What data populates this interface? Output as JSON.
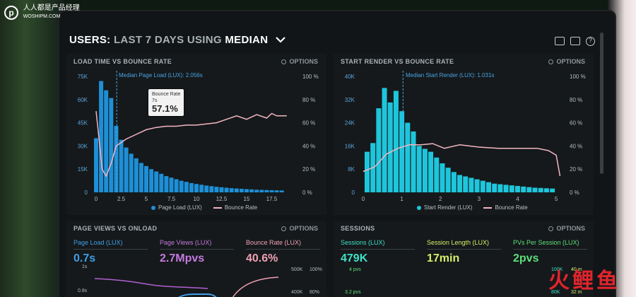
{
  "watermark": {
    "logo": "p",
    "text": "人人都是产品经理",
    "sub": "WOSHIPM.COM"
  },
  "header": {
    "title_parts": [
      "USERS:",
      "LAST 7 DAYS",
      "USING",
      "MEDIAN"
    ],
    "chevron": "chevron-down-icon"
  },
  "toolbar": {
    "icons": [
      "monitor-icon",
      "expand-icon",
      "help-icon"
    ],
    "help_glyph": "?"
  },
  "panels": {
    "load_time": {
      "title": "LOAD TIME VS BOUNCE RATE",
      "options": "OPTIONS",
      "median_label": "Median Page Load (LUX): 2.056s",
      "y_left": [
        "75K",
        "60K",
        "45K",
        "30K",
        "15K",
        "0"
      ],
      "y_right": [
        "100 %",
        "80 %",
        "60 %",
        "40 %",
        "20 %",
        "0 %"
      ],
      "x_ticks": [
        "0",
        "2.5",
        "5",
        "7.5",
        "10",
        "12.5",
        "15",
        "17.5"
      ],
      "legend": [
        "Page Load (LUX)",
        "Bounce Rate"
      ],
      "tooltip": {
        "label": "Bounce Rate",
        "sub": "7s",
        "value": "57.1%"
      }
    },
    "start_render": {
      "title": "START RENDER VS BOUNCE RATE",
      "options": "OPTIONS",
      "median_label": "Median Start Render (LUX): 1.031s",
      "y_left": [
        "40K",
        "32K",
        "24K",
        "16K",
        "8K",
        "0"
      ],
      "y_right": [
        "100 %",
        "80 %",
        "60 %",
        "40 %",
        "20 %",
        "0 %"
      ],
      "x_ticks": [
        "0",
        "1",
        "2",
        "3",
        "4",
        "5"
      ],
      "legend": [
        "Start Render (LUX)",
        "Bounce Rate"
      ]
    },
    "page_views": {
      "title": "PAGE VIEWS VS ONLOAD",
      "options": "OPTIONS",
      "metrics": [
        {
          "label": "Page Load (LUX)",
          "value": "0.7s",
          "color": "#3f9ee8"
        },
        {
          "label": "Page Views (LUX)",
          "value": "2.7Mpvs",
          "color": "#c57be0"
        },
        {
          "label": "Bounce Rate (LUX)",
          "value": "40.6%",
          "color": "#f0a0b4"
        }
      ],
      "ticks_left": [
        "1s",
        "0.8s"
      ],
      "ticks_right_a": [
        "500K",
        "400K"
      ],
      "ticks_right_b": [
        "100%",
        "80%"
      ]
    },
    "sessions": {
      "title": "SESSIONS",
      "options": "OPTIONS",
      "metrics": [
        {
          "label": "Sessions (LUX)",
          "value": "479K",
          "color": "#3fe0c8"
        },
        {
          "label": "Session Length (LUX)",
          "value": "17min",
          "color": "#d6f06a"
        },
        {
          "label": "PVs Per Session (LUX)",
          "value": "2pvs",
          "color": "#5ee07a"
        }
      ],
      "ticks_left": [
        "4 pvs",
        "3.2 pvs"
      ],
      "ticks_right_a": [
        "100K",
        "80K"
      ],
      "ticks_right_b": [
        "40 m",
        "32 m"
      ]
    }
  },
  "brand_logo": "火鲤鱼",
  "colors": {
    "bar_blue": "#1e8fd6",
    "bar_cyan": "#1ec6dc",
    "bounce_pink": "#f4b6c2",
    "median_blue": "#4aa4e6"
  },
  "chart_data": [
    {
      "type": "bar",
      "title": "LOAD TIME VS BOUNCE RATE",
      "x_range": [
        0,
        20
      ],
      "ylim": [
        0,
        75000
      ],
      "y2lim": [
        0,
        100
      ],
      "bars_x": [
        0,
        0.5,
        1,
        1.5,
        2,
        2.5,
        3,
        3.5,
        4,
        4.5,
        5,
        5.5,
        6,
        6.5,
        7,
        7.5,
        8,
        8.5,
        9,
        9.5,
        10,
        10.5,
        11,
        11.5,
        12,
        12.5,
        13,
        13.5,
        14,
        14.5,
        15,
        15.5,
        16,
        16.5,
        17,
        17.5,
        18,
        18.5
      ],
      "series": [
        {
          "name": "Page Load (LUX)",
          "values": [
            35000,
            72000,
            66000,
            61000,
            43000,
            34000,
            29000,
            25000,
            22000,
            19000,
            17000,
            15000,
            13500,
            12000,
            10500,
            9500,
            8500,
            7500,
            6800,
            6000,
            5400,
            4900,
            4400,
            4000,
            3600,
            3300,
            3000,
            2700,
            2500,
            2300,
            2100,
            1900,
            1700,
            1600,
            1500,
            1400,
            1300,
            1200
          ]
        },
        {
          "name": "Bounce Rate",
          "x": [
            0,
            0.3,
            0.6,
            1,
            1.5,
            2,
            3,
            4,
            5,
            6,
            7,
            8,
            9,
            10,
            11,
            12,
            13,
            14,
            15,
            16,
            17,
            17.5,
            18,
            18.5,
            19
          ],
          "values": [
            70,
            45,
            20,
            14,
            25,
            40,
            46,
            50,
            54,
            56,
            57,
            57,
            58,
            58,
            59,
            60,
            63,
            66,
            63,
            67,
            64,
            68,
            66,
            66,
            66
          ]
        }
      ],
      "median": 2.056
    },
    {
      "type": "bar",
      "title": "START RENDER VS BOUNCE RATE",
      "x_range": [
        0,
        5.2
      ],
      "ylim": [
        0,
        40000
      ],
      "y2lim": [
        0,
        100
      ],
      "bars_x": [
        0.1,
        0.25,
        0.4,
        0.55,
        0.7,
        0.85,
        1.0,
        1.15,
        1.3,
        1.45,
        1.6,
        1.75,
        1.9,
        2.05,
        2.2,
        2.35,
        2.5,
        2.65,
        2.8,
        2.95,
        3.1,
        3.25,
        3.4,
        3.55,
        3.7,
        3.85,
        4.0,
        4.15,
        4.3,
        4.45,
        4.6,
        4.75,
        4.9
      ],
      "series": [
        {
          "name": "Start Render (LUX)",
          "values": [
            14000,
            17000,
            29000,
            36000,
            31000,
            35000,
            28000,
            24000,
            21000,
            16000,
            15000,
            14000,
            12000,
            10000,
            8500,
            7000,
            6000,
            5500,
            5000,
            4500,
            4000,
            3500,
            3000,
            2800,
            2600,
            2400,
            2200,
            2000,
            1800,
            1600,
            1500,
            1400,
            1300
          ]
        },
        {
          "name": "Bounce Rate",
          "x": [
            0,
            0.3,
            0.6,
            0.9,
            1.2,
            1.5,
            1.8,
            2.1,
            2.5,
            3,
            3.5,
            4,
            4.5,
            4.8,
            5,
            5.1
          ],
          "values": [
            18,
            22,
            33,
            38,
            41,
            41,
            42,
            38,
            41,
            39,
            38,
            38,
            38,
            36,
            32,
            14
          ]
        }
      ],
      "median": 1.031
    }
  ]
}
